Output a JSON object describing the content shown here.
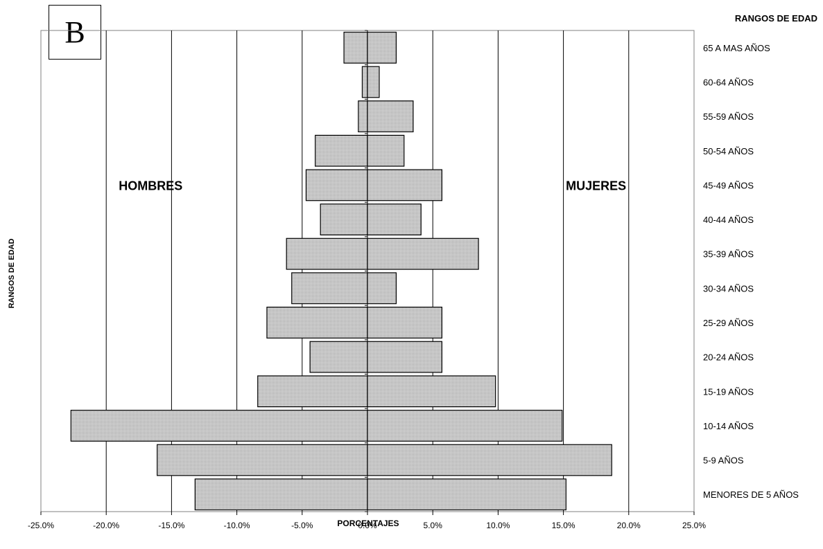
{
  "panel_letter": "B",
  "chart_data": {
    "type": "bar",
    "orientation": "horizontal",
    "layout": "population-pyramid",
    "xlabel": "PORCENTAJES",
    "ylabel": "RANGOS DE EDAD",
    "category_axis_title": "RANGOS DE EDAD",
    "xlim": [
      -25,
      25
    ],
    "x_ticks": [
      -25,
      -20,
      -15,
      -10,
      -5,
      0,
      5,
      10,
      15,
      20,
      25
    ],
    "x_tick_labels": [
      "-25.0%",
      "-20.0%",
      "-15.0%",
      "-10.0%",
      "-5.0%",
      "0.0%",
      "5.0%",
      "10.0%",
      "15.0%",
      "20.0%",
      "25.0%"
    ],
    "grid": "vertical",
    "bar_fill": "#c8c8c8",
    "categories": [
      "65 A MAS AÑOS",
      "60-64 AÑOS",
      "55-59 AÑOS",
      "50-54 AÑOS",
      "45-49 AÑOS",
      "40-44 AÑOS",
      "35-39 AÑOS",
      "30-34 AÑOS",
      "25-29 AÑOS",
      "20-24 AÑOS",
      "15-19 AÑOS",
      "10-14 AÑOS",
      "5-9 AÑOS",
      "MENORES DE 5 AÑOS"
    ],
    "series": [
      {
        "name": "HOMBRES",
        "values": [
          -1.8,
          -0.4,
          -0.7,
          -4.0,
          -4.7,
          -3.6,
          -6.2,
          -5.8,
          -7.7,
          -4.4,
          -8.4,
          -22.7,
          -16.1,
          -13.2
        ]
      },
      {
        "name": "MUJERES",
        "values": [
          2.2,
          0.9,
          3.5,
          2.8,
          5.7,
          4.1,
          8.5,
          2.2,
          5.7,
          5.7,
          9.8,
          14.9,
          18.7,
          15.2
        ]
      }
    ]
  }
}
